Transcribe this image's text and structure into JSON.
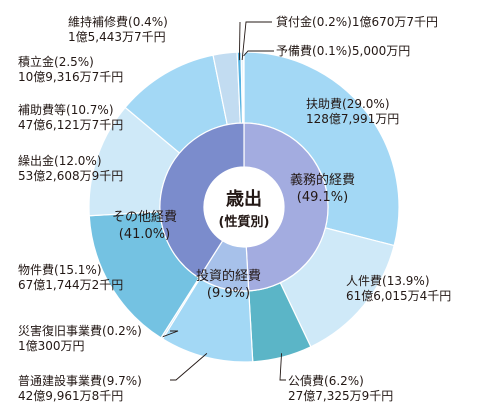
{
  "chart_data": {
    "type": "pie",
    "title": "歳出",
    "subtitle": "(性質別)",
    "colors": {
      "slices": [
        "#a3d8f5",
        "#cfe9f8",
        "#5bb5c7",
        "#a3d8f5",
        "#c2dcf1",
        "#ffffff",
        "#74c2e2",
        "#cfe9f8",
        "#a3d8f5",
        "#c2dcf1",
        "#55b2e0",
        "#cfe9f8",
        "#9fd0ee",
        "#b8dcf4"
      ],
      "inner": [
        "#a3ace0",
        "#a7c1ea",
        "#7b8ccc"
      ],
      "line": "#231815",
      "text": "#231815"
    },
    "slices": [
      {
        "name": "扶助費",
        "pct": "(29.0%)",
        "amount": "128億7,991万円",
        "value": 29.0
      },
      {
        "name": "人件費",
        "pct": "(13.9%)",
        "amount": "61億6,015万4千円",
        "value": 13.9
      },
      {
        "name": "公債費",
        "pct": "(6.2%)",
        "amount": "27億7,325万9千円",
        "value": 6.2
      },
      {
        "name": "普通建設事業費",
        "pct": "(9.7%)",
        "amount": "42億9,961万8千円",
        "value": 9.7
      },
      {
        "name": "災害復旧事業費",
        "pct": "(0.2%)",
        "amount": "1億300万円",
        "value": 0.2
      },
      {
        "name": "",
        "pct": "",
        "amount": "",
        "value": 0.0
      },
      {
        "name": "物件費",
        "pct": "(15.1%)",
        "amount": "67億1,744万2千円",
        "value": 15.1
      },
      {
        "name": "繰出金",
        "pct": "(12.0%)",
        "amount": "53億2,608万9千円",
        "value": 12.0
      },
      {
        "name": "補助費等",
        "pct": "(10.7%)",
        "amount": "47億6,121万7千円",
        "value": 10.7
      },
      {
        "name": "積立金",
        "pct": "(2.5%)",
        "amount": "10億9,316万7千円",
        "value": 2.5
      },
      {
        "name": "維持補修費",
        "pct": "(0.4%)",
        "amount": "1億5,443万7千円",
        "value": 0.4
      },
      {
        "name": "貸付金",
        "pct": "(0.2%)",
        "amount": "1億670万7千円",
        "value": 0.2
      },
      {
        "name": "予備費",
        "pct": "(0.1%)",
        "amount": "5,000万円",
        "value": 0.1
      }
    ],
    "groups": [
      {
        "name": "義務的経費",
        "pct": "(49.1%)",
        "value": 49.1
      },
      {
        "name": "投資的経費",
        "pct": "(9.9%)",
        "value": 9.9
      },
      {
        "name": "その他経費",
        "pct": "(41.0%)",
        "value": 41.0
      }
    ]
  }
}
